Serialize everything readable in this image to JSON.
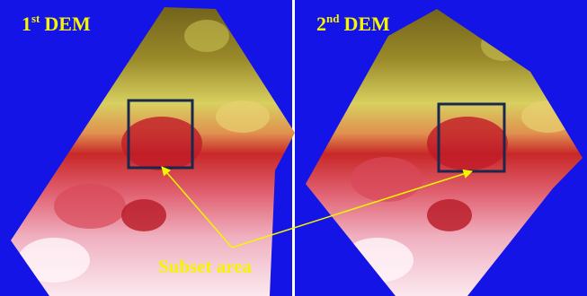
{
  "panels": [
    {
      "title": {
        "number": "1",
        "suffix": "st",
        "rest": "DEM"
      }
    },
    {
      "title": {
        "number": "2",
        "suffix": "nd",
        "rest": "DEM"
      }
    }
  ],
  "annotation": "Subset area"
}
